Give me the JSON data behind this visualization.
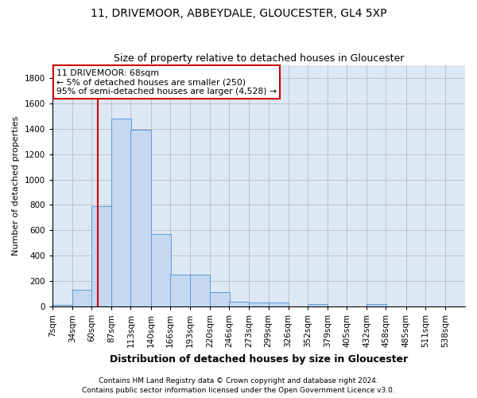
{
  "title1": "11, DRIVEMOOR, ABBEYDALE, GLOUCESTER, GL4 5XP",
  "title2": "Size of property relative to detached houses in Gloucester",
  "xlabel": "Distribution of detached houses by size in Gloucester",
  "ylabel": "Number of detached properties",
  "bin_edges": [
    7,
    34,
    60,
    87,
    113,
    140,
    166,
    193,
    220,
    246,
    273,
    299,
    326,
    352,
    379,
    405,
    432,
    458,
    485,
    511,
    538
  ],
  "bar_heights": [
    10,
    130,
    790,
    1480,
    1390,
    570,
    250,
    250,
    115,
    35,
    30,
    30,
    0,
    20,
    0,
    0,
    20,
    0,
    0,
    0,
    0
  ],
  "bar_color": "#c5d8f0",
  "bar_edgecolor": "#5b9bd5",
  "vline_x": 68,
  "vline_color": "#cc0000",
  "ylim": [
    0,
    1900
  ],
  "yticks": [
    0,
    200,
    400,
    600,
    800,
    1000,
    1200,
    1400,
    1600,
    1800
  ],
  "annotation_text": "11 DRIVEMOOR: 68sqm\n← 5% of detached houses are smaller (250)\n95% of semi-detached houses are larger (4,528) →",
  "annotation_box_facecolor": "#ffffff",
  "annotation_box_edgecolor": "#cc0000",
  "footer1": "Contains HM Land Registry data © Crown copyright and database right 2024.",
  "footer2": "Contains public sector information licensed under the Open Government Licence v3.0.",
  "background_color": "#ffffff",
  "plot_bg_color": "#dde8f5",
  "grid_color": "#bbbbbb",
  "title1_fontsize": 10,
  "title2_fontsize": 9,
  "xlabel_fontsize": 9,
  "ylabel_fontsize": 8,
  "tick_fontsize": 7.5,
  "footer_fontsize": 6.5
}
